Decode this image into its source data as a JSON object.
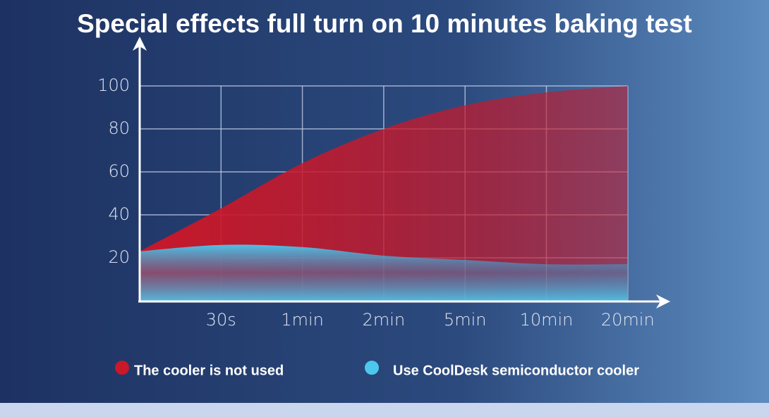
{
  "chart_data": {
    "type": "area",
    "title": "Special effects full turn on 10 minutes baking test",
    "categories": [
      null,
      "30s",
      "1min",
      "2min",
      "5min",
      "10min",
      "20min"
    ],
    "series": [
      {
        "name": "The cooler is not used",
        "color": "#c8182a",
        "values": [
          23,
          43,
          64,
          80,
          91,
          97,
          100
        ]
      },
      {
        "name": "Use CoolDesk semiconductor cooler",
        "color": "#4cc8ee",
        "values": [
          23,
          26,
          25,
          21,
          19,
          17,
          17
        ]
      }
    ],
    "ylim": [
      0,
      100
    ],
    "yticks": [
      20,
      40,
      60,
      80,
      100
    ],
    "grid": true
  }
}
